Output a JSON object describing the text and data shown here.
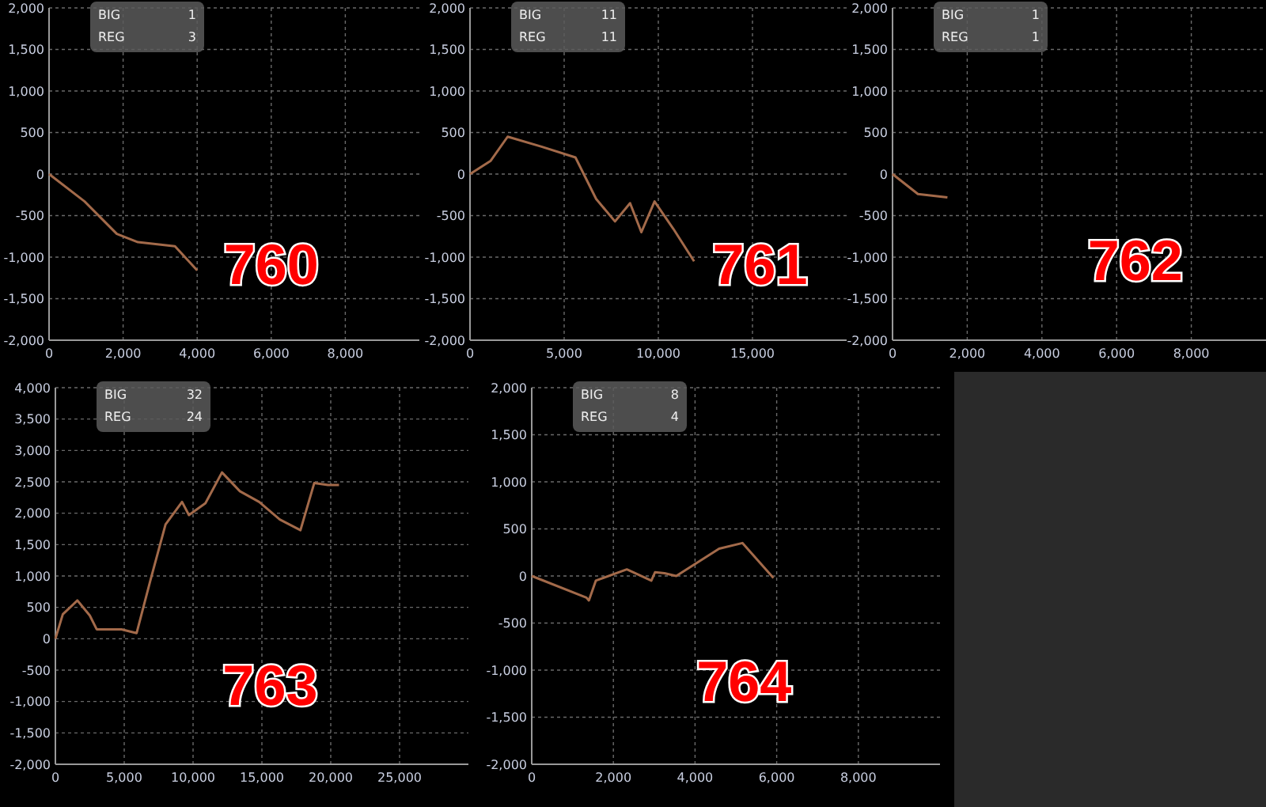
{
  "chart_data": [
    {
      "type": "line",
      "xlim": [
        0,
        10000
      ],
      "xticks": [
        {
          "value": 0,
          "label": "0"
        },
        {
          "value": 2000,
          "label": "2,000"
        },
        {
          "value": 4000,
          "label": "4,000"
        },
        {
          "value": 6000,
          "label": "6,000"
        },
        {
          "value": 8000,
          "label": "8,000"
        }
      ],
      "ylim": [
        -2000,
        2000
      ],
      "yticks": [
        {
          "value": -2000,
          "label": "-2,000"
        },
        {
          "value": -1500,
          "label": "-1,500"
        },
        {
          "value": -1000,
          "label": "-1,000"
        },
        {
          "value": -500,
          "label": "-500"
        },
        {
          "value": 0,
          "label": "0"
        },
        {
          "value": 500,
          "label": "500"
        },
        {
          "value": 1000,
          "label": "1,000"
        },
        {
          "value": 1500,
          "label": "1,500"
        },
        {
          "value": 2000,
          "label": "2,000"
        }
      ],
      "grid": true,
      "annotations": [
        "BIG",
        "1",
        "REG",
        "3",
        "760"
      ],
      "series": [
        {
          "color": "#a36a4a",
          "x": [
            0,
            960,
            1830,
            2400,
            3400,
            4000
          ],
          "values": [
            0,
            -330,
            -720,
            -820,
            -870,
            -1160
          ]
        }
      ]
    },
    {
      "type": "line",
      "xlim": [
        0,
        20000
      ],
      "xticks": [
        {
          "value": 0,
          "label": "0"
        },
        {
          "value": 5000,
          "label": "5,000"
        },
        {
          "value": 10000,
          "label": "10,000"
        },
        {
          "value": 15000,
          "label": "15,000"
        }
      ],
      "ylim": [
        -2000,
        2000
      ],
      "yticks": [
        {
          "value": -2000,
          "label": "-2,000"
        },
        {
          "value": -1500,
          "label": "-1,500"
        },
        {
          "value": -1000,
          "label": "-1,000"
        },
        {
          "value": -500,
          "label": "-500"
        },
        {
          "value": 0,
          "label": "0"
        },
        {
          "value": 500,
          "label": "500"
        },
        {
          "value": 1000,
          "label": "1,000"
        },
        {
          "value": 1500,
          "label": "1,500"
        },
        {
          "value": 2000,
          "label": "2,000"
        }
      ],
      "grid": true,
      "annotations": [
        "BIG",
        "11",
        "REG",
        "11",
        "761"
      ],
      "series": [
        {
          "color": "#a36a4a",
          "x": [
            0,
            1100,
            2000,
            3800,
            5600,
            6700,
            7700,
            8500,
            9100,
            9800,
            10800,
            11900
          ],
          "values": [
            0,
            160,
            450,
            330,
            200,
            -300,
            -570,
            -350,
            -700,
            -330,
            -660,
            -1050
          ]
        }
      ]
    },
    {
      "type": "line",
      "xlim": [
        0,
        10000
      ],
      "xticks": [
        {
          "value": 0,
          "label": "0"
        },
        {
          "value": 2000,
          "label": "2,000"
        },
        {
          "value": 4000,
          "label": "4,000"
        },
        {
          "value": 6000,
          "label": "6,000"
        },
        {
          "value": 8000,
          "label": "8,000"
        }
      ],
      "ylim": [
        -2000,
        2000
      ],
      "yticks": [
        {
          "value": -2000,
          "label": "-2,000"
        },
        {
          "value": -1500,
          "label": "-1,500"
        },
        {
          "value": -1000,
          "label": "-1,000"
        },
        {
          "value": -500,
          "label": "-500"
        },
        {
          "value": 0,
          "label": "0"
        },
        {
          "value": 500,
          "label": "500"
        },
        {
          "value": 1000,
          "label": "1,000"
        },
        {
          "value": 1500,
          "label": "1,500"
        },
        {
          "value": 2000,
          "label": "2,000"
        }
      ],
      "grid": true,
      "annotations": [
        "BIG",
        "1",
        "REG",
        "1",
        "762"
      ],
      "series": [
        {
          "color": "#a36a4a",
          "x": [
            0,
            680,
            1470
          ],
          "values": [
            0,
            -240,
            -280
          ]
        }
      ]
    },
    {
      "type": "line",
      "xlim": [
        0,
        30000
      ],
      "xticks": [
        {
          "value": 0,
          "label": "0"
        },
        {
          "value": 5000,
          "label": "5,000"
        },
        {
          "value": 10000,
          "label": "10,000"
        },
        {
          "value": 15000,
          "label": "15,000"
        },
        {
          "value": 20000,
          "label": "20,000"
        },
        {
          "value": 25000,
          "label": "25,000"
        }
      ],
      "ylim": [
        -2000,
        4000
      ],
      "yticks": [
        {
          "value": -2000,
          "label": "-2,000"
        },
        {
          "value": -1500,
          "label": "-1,500"
        },
        {
          "value": -1000,
          "label": "-1,000"
        },
        {
          "value": -500,
          "label": "-500"
        },
        {
          "value": 0,
          "label": "0"
        },
        {
          "value": 500,
          "label": "500"
        },
        {
          "value": 1000,
          "label": "1,000"
        },
        {
          "value": 1500,
          "label": "1,500"
        },
        {
          "value": 2000,
          "label": "2,000"
        },
        {
          "value": 2500,
          "label": "2,500"
        },
        {
          "value": 3000,
          "label": "3,000"
        },
        {
          "value": 3500,
          "label": "3,500"
        },
        {
          "value": 4000,
          "label": "4,000"
        }
      ],
      "grid": true,
      "annotations": [
        "BIG",
        "32",
        "REG",
        "24",
        "763"
      ],
      "series": [
        {
          "color": "#a36a4a",
          "x": [
            0,
            540,
            1600,
            2500,
            3000,
            4800,
            5900,
            6900,
            8000,
            9200,
            9700,
            10900,
            12100,
            13400,
            14800,
            16300,
            17800,
            18800,
            19800,
            20600
          ],
          "values": [
            0,
            390,
            610,
            370,
            150,
            150,
            90,
            930,
            1820,
            2180,
            1970,
            2160,
            2650,
            2350,
            2180,
            1900,
            1730,
            2480,
            2450,
            2450
          ]
        }
      ]
    },
    {
      "type": "line",
      "xlim": [
        0,
        10000
      ],
      "xticks": [
        {
          "value": 0,
          "label": "0"
        },
        {
          "value": 2000,
          "label": "2,000"
        },
        {
          "value": 4000,
          "label": "4,000"
        },
        {
          "value": 6000,
          "label": "6,000"
        },
        {
          "value": 8000,
          "label": "8,000"
        }
      ],
      "ylim": [
        -2000,
        2000
      ],
      "yticks": [
        {
          "value": -2000,
          "label": "-2,000"
        },
        {
          "value": -1500,
          "label": "-1,500"
        },
        {
          "value": -1000,
          "label": "-1,000"
        },
        {
          "value": -500,
          "label": "-500"
        },
        {
          "value": 0,
          "label": "0"
        },
        {
          "value": 500,
          "label": "500"
        },
        {
          "value": 1000,
          "label": "1,000"
        },
        {
          "value": 1500,
          "label": "1,500"
        },
        {
          "value": 2000,
          "label": "2,000"
        }
      ],
      "grid": true,
      "annotations": [
        "BIG",
        "8",
        "REG",
        "4",
        "764"
      ],
      "series": [
        {
          "color": "#a36a4a",
          "x": [
            0,
            1340,
            1400,
            1570,
            2330,
            2930,
            3020,
            3250,
            3540,
            4590,
            5160,
            5920
          ],
          "values": [
            0,
            -230,
            -260,
            -50,
            70,
            -50,
            40,
            30,
            0,
            290,
            350,
            -20
          ]
        }
      ]
    }
  ]
}
